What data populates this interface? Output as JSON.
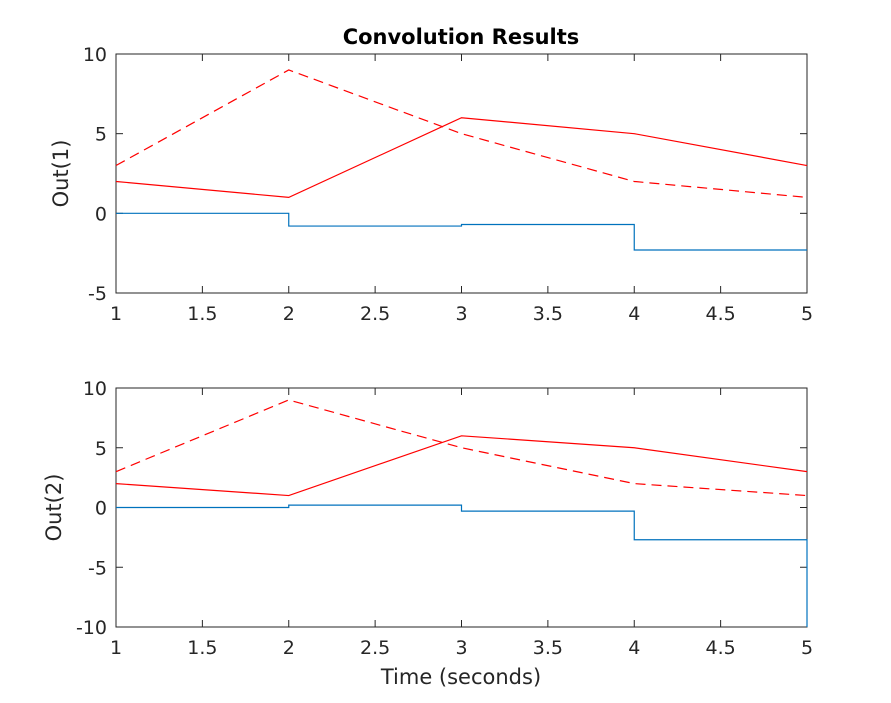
{
  "chart_data": {
    "type": "line",
    "title": "Convolution Results",
    "xlabel": "Time (seconds)",
    "subplots": [
      {
        "ylabel": "Out(1)",
        "xlim": [
          1,
          5
        ],
        "ylim": [
          -5,
          10
        ],
        "xticks": [
          1,
          1.5,
          2,
          2.5,
          3,
          3.5,
          4,
          4.5,
          5
        ],
        "xtick_labels": [
          "1",
          "1.5",
          "2",
          "2.5",
          "3",
          "3.5",
          "4",
          "4.5",
          "5"
        ],
        "yticks": [
          -5,
          0,
          5,
          10
        ],
        "ytick_labels": [
          "-5",
          "0",
          "5",
          "10"
        ],
        "series": [
          {
            "color": "#ff0000",
            "style": "solid",
            "step": false,
            "x": [
              1,
              2,
              3,
              4,
              5
            ],
            "y": [
              2,
              1,
              6,
              5,
              3
            ]
          },
          {
            "color": "#ff0000",
            "style": "dashed",
            "step": false,
            "x": [
              1,
              2,
              3,
              4,
              5
            ],
            "y": [
              3,
              9,
              5,
              2,
              1
            ]
          },
          {
            "color": "#0072bd",
            "style": "solid",
            "step": true,
            "x": [
              1,
              2,
              3,
              4,
              5
            ],
            "y": [
              0,
              -0.8,
              -0.7,
              -2.3,
              -2.3
            ]
          }
        ]
      },
      {
        "ylabel": "Out(2)",
        "xlim": [
          1,
          5
        ],
        "ylim": [
          -10,
          10
        ],
        "xticks": [
          1,
          1.5,
          2,
          2.5,
          3,
          3.5,
          4,
          4.5,
          5
        ],
        "xtick_labels": [
          "1",
          "1.5",
          "2",
          "2.5",
          "3",
          "3.5",
          "4",
          "4.5",
          "5"
        ],
        "yticks": [
          -10,
          -5,
          0,
          5,
          10
        ],
        "ytick_labels": [
          "-10",
          "-5",
          "0",
          "5",
          "10"
        ],
        "series": [
          {
            "color": "#ff0000",
            "style": "solid",
            "step": false,
            "x": [
              1,
              2,
              3,
              4,
              5
            ],
            "y": [
              2,
              1,
              6,
              5,
              3
            ]
          },
          {
            "color": "#ff0000",
            "style": "dashed",
            "step": false,
            "x": [
              1,
              2,
              3,
              4,
              5
            ],
            "y": [
              3,
              9,
              5,
              2,
              1
            ]
          },
          {
            "color": "#0072bd",
            "style": "solid",
            "step": true,
            "x": [
              1,
              2,
              3,
              4,
              5,
              5
            ],
            "y": [
              0,
              0.2,
              -0.3,
              -2.7,
              -2.7,
              -10
            ]
          }
        ]
      }
    ]
  }
}
